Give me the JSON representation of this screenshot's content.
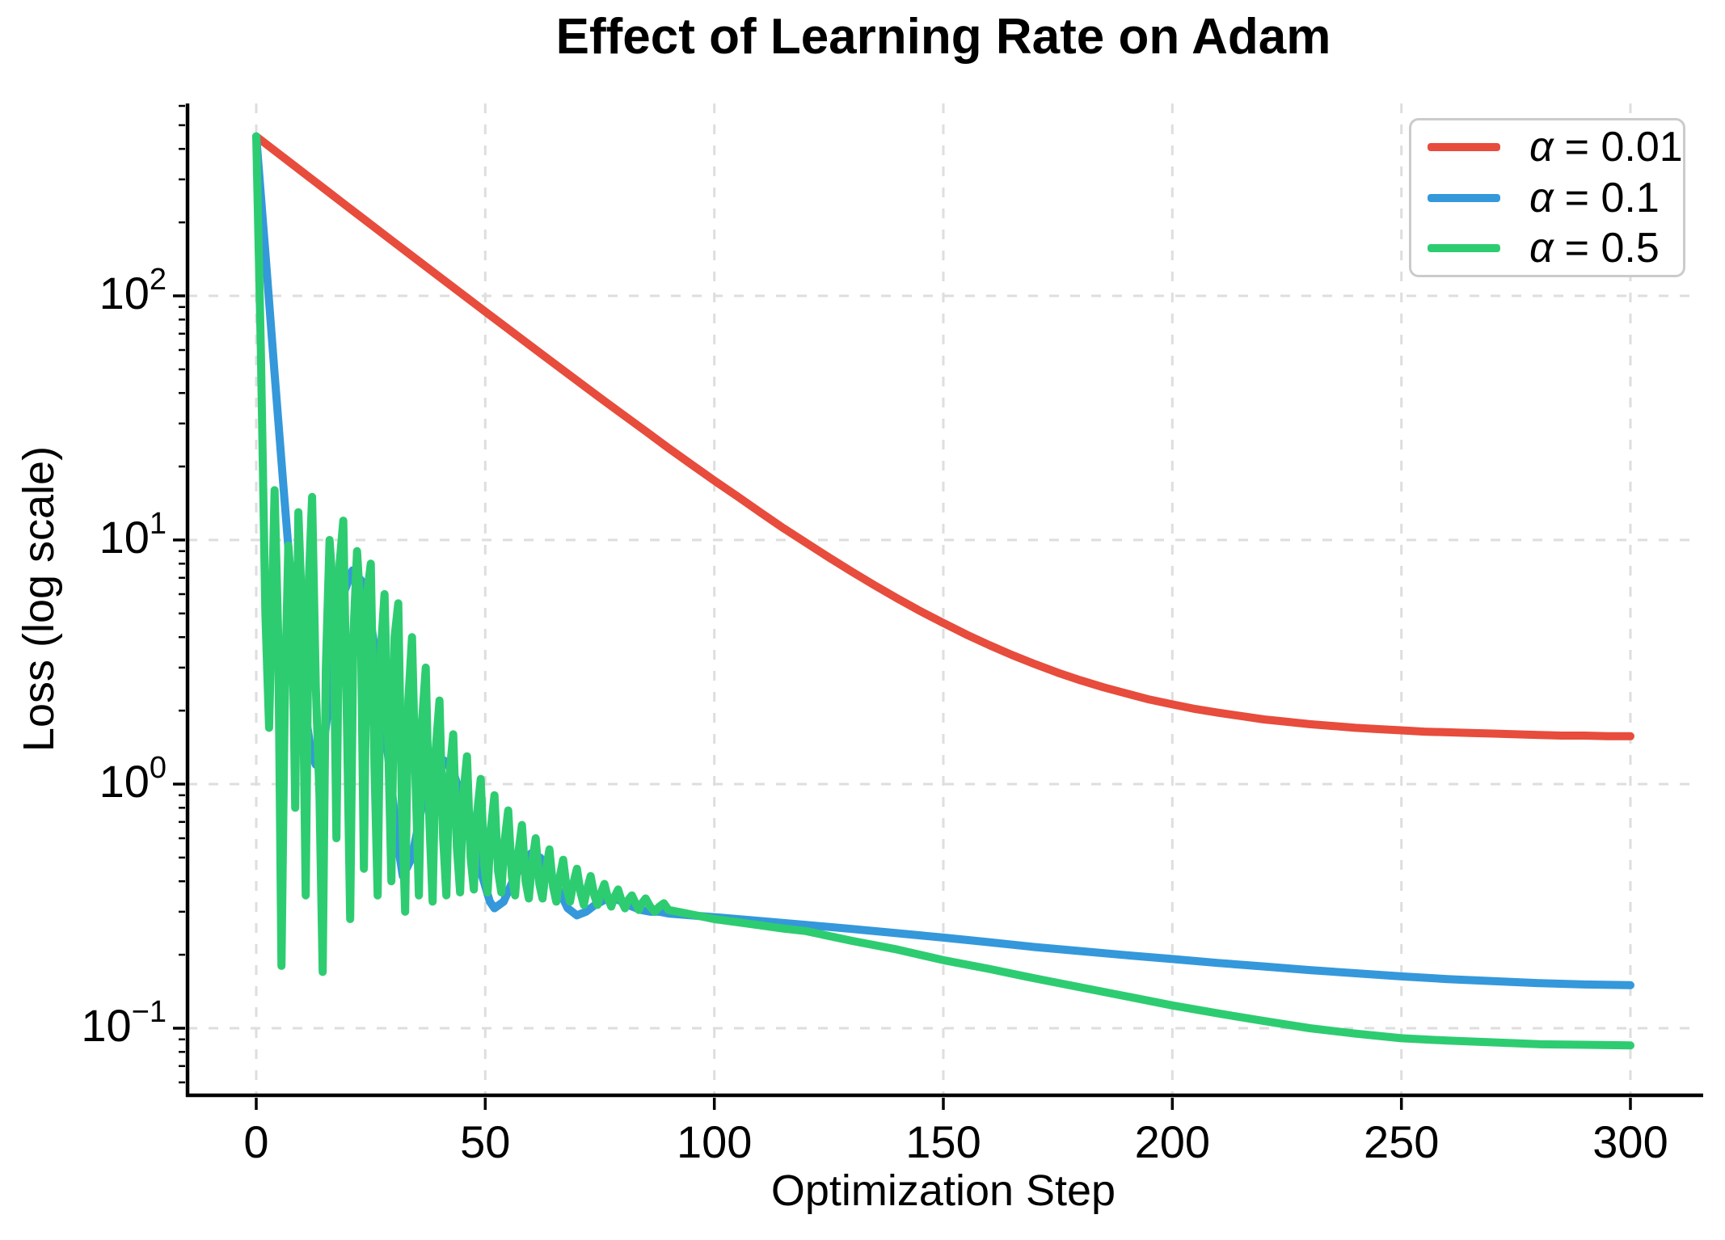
{
  "title": "Effect of Learning Rate on Adam",
  "axes": {
    "xlabel": "Optimization Step",
    "ylabel": "Loss (log scale)"
  },
  "legend": {
    "position": "upper right",
    "items": [
      {
        "symbol": "α",
        "rest": "= 0.01",
        "label": "α = 0.01",
        "color": "#e74c3c"
      },
      {
        "symbol": "α",
        "rest": "= 0.1",
        "label": "α = 0.1",
        "color": "#3498db"
      },
      {
        "symbol": "α",
        "rest": "= 0.5",
        "label": "α = 0.5",
        "color": "#2ecc71"
      }
    ]
  },
  "chart_data": {
    "type": "line",
    "title": "Effect of Learning Rate on Adam",
    "xlabel": "Optimization Step",
    "ylabel": "Loss (log scale)",
    "y_scale": "log",
    "x_range": [
      -15,
      315
    ],
    "y_range": [
      0.052,
      614
    ],
    "x_ticks": [
      0,
      50,
      100,
      150,
      200,
      250,
      300
    ],
    "y_tick_exponents": [
      -1,
      0,
      1,
      2
    ],
    "grid": "dashed-both-axes",
    "legend_position": "upper right",
    "series": [
      {
        "name": "α = 0.01",
        "color": "#e74c3c",
        "x": [
          0,
          5,
          10,
          15,
          20,
          25,
          30,
          35,
          40,
          45,
          50,
          55,
          60,
          65,
          70,
          75,
          80,
          85,
          90,
          95,
          100,
          105,
          110,
          115,
          120,
          125,
          130,
          135,
          140,
          145,
          150,
          155,
          160,
          165,
          170,
          175,
          180,
          185,
          190,
          195,
          200,
          205,
          210,
          215,
          220,
          225,
          230,
          235,
          240,
          245,
          250,
          255,
          260,
          265,
          270,
          275,
          280,
          285,
          290,
          295,
          300
        ],
        "y": [
          449.6,
          380.8,
          322.5,
          273.3,
          231.5,
          196.2,
          166.3,
          141,
          119.6,
          101.5,
          86.2,
          73.2,
          62.2,
          52.9,
          45,
          38.3,
          32.7,
          27.9,
          23.8,
          20.4,
          17.5,
          15.1,
          13,
          11.2,
          9.75,
          8.49,
          7.42,
          6.52,
          5.76,
          5.11,
          4.57,
          4.1,
          3.71,
          3.38,
          3.1,
          2.86,
          2.66,
          2.49,
          2.35,
          2.22,
          2.12,
          2.03,
          1.96,
          1.9,
          1.84,
          1.8,
          1.76,
          1.73,
          1.7,
          1.68,
          1.66,
          1.64,
          1.63,
          1.62,
          1.61,
          1.6,
          1.59,
          1.58,
          1.58,
          1.57,
          1.57
        ]
      },
      {
        "name": "α = 0.1",
        "color": "#3498db",
        "x": [
          0,
          2,
          4,
          6,
          8,
          10,
          12,
          13,
          15,
          17,
          19,
          21,
          23,
          25,
          27,
          29,
          31,
          32,
          34,
          36,
          38,
          40,
          41,
          43,
          45,
          47,
          49,
          51,
          52,
          54,
          56,
          58,
          60,
          62,
          64,
          66,
          68,
          70,
          72,
          74,
          76,
          78,
          80,
          82,
          84,
          86,
          88,
          90,
          95,
          100,
          110,
          120,
          130,
          140,
          150,
          160,
          170,
          180,
          190,
          200,
          210,
          220,
          230,
          240,
          250,
          260,
          270,
          280,
          290,
          300
        ],
        "y": [
          450,
          150,
          48,
          16,
          5.5,
          2.4,
          1.35,
          1.2,
          1.6,
          3.2,
          6,
          7.5,
          6.8,
          4.6,
          2.6,
          1.2,
          0.55,
          0.42,
          0.5,
          0.78,
          1.05,
          1.22,
          1.25,
          1.12,
          0.86,
          0.62,
          0.44,
          0.33,
          0.31,
          0.33,
          0.4,
          0.47,
          0.52,
          0.5,
          0.44,
          0.37,
          0.31,
          0.29,
          0.3,
          0.32,
          0.335,
          0.34,
          0.33,
          0.315,
          0.305,
          0.3,
          0.3,
          0.295,
          0.29,
          0.285,
          0.275,
          0.265,
          0.255,
          0.245,
          0.235,
          0.225,
          0.215,
          0.207,
          0.199,
          0.192,
          0.185,
          0.179,
          0.173,
          0.168,
          0.163,
          0.159,
          0.156,
          0.153,
          0.151,
          0.15
        ]
      },
      {
        "name": "α = 0.5",
        "color": "#2ecc71",
        "x": [
          0,
          1,
          2,
          2.8,
          3.5,
          4,
          4.8,
          5.5,
          6.2,
          7,
          7.8,
          8.5,
          9.2,
          10,
          10.8,
          11.5,
          12.2,
          13,
          13.8,
          14.5,
          15.2,
          16,
          16.8,
          17.5,
          18.2,
          19,
          19.8,
          20.5,
          21.2,
          22,
          22.8,
          23.5,
          24.2,
          25,
          25.8,
          26.5,
          27.2,
          28,
          28.8,
          29.5,
          30.2,
          31,
          31.8,
          32.5,
          33.2,
          34,
          34.8,
          35.5,
          36.2,
          37,
          37.8,
          38.5,
          39.2,
          40,
          40.8,
          41.5,
          42.2,
          43,
          43.8,
          44.5,
          45.2,
          46,
          46.8,
          47.5,
          48.2,
          49,
          49.8,
          50.5,
          51.2,
          52,
          52.8,
          53.5,
          54.2,
          55,
          55.8,
          56.5,
          57.2,
          58,
          58.8,
          59.5,
          60.2,
          61,
          61.8,
          62.5,
          63.2,
          64,
          64.8,
          65.5,
          66.2,
          67,
          67.8,
          68.5,
          69.2,
          70,
          70.8,
          71.5,
          72.2,
          73,
          73.8,
          74.5,
          75.2,
          76,
          76.8,
          77.5,
          78.2,
          79,
          79.8,
          80.5,
          81.2,
          82,
          82.8,
          83.5,
          84.2,
          85,
          86,
          87,
          88,
          89,
          90,
          92,
          94,
          96,
          98,
          100,
          105,
          110,
          115,
          120,
          130,
          140,
          150,
          160,
          170,
          180,
          190,
          200,
          210,
          220,
          230,
          240,
          250,
          260,
          270,
          280,
          290,
          300
        ],
        "y": [
          450,
          60,
          5,
          1.7,
          6,
          16,
          4,
          0.18,
          2,
          9.5,
          6,
          0.8,
          13,
          5,
          0.35,
          7,
          15,
          2.5,
          0.9,
          0.17,
          3,
          10,
          6,
          0.6,
          8,
          12,
          1.8,
          0.28,
          4,
          9,
          5,
          0.45,
          6,
          8,
          1.2,
          0.35,
          3.5,
          6,
          1.5,
          0.4,
          4,
          5.5,
          0.8,
          0.3,
          2.2,
          4,
          1,
          0.35,
          1.8,
          3,
          0.7,
          0.33,
          1.4,
          2.2,
          0.6,
          0.35,
          1.1,
          1.6,
          0.55,
          0.36,
          0.9,
          1.3,
          0.5,
          0.37,
          0.75,
          1.05,
          0.46,
          0.36,
          0.65,
          0.9,
          0.44,
          0.36,
          0.58,
          0.78,
          0.42,
          0.35,
          0.52,
          0.68,
          0.4,
          0.34,
          0.47,
          0.6,
          0.39,
          0.34,
          0.44,
          0.54,
          0.38,
          0.33,
          0.41,
          0.49,
          0.37,
          0.33,
          0.39,
          0.45,
          0.36,
          0.32,
          0.37,
          0.42,
          0.35,
          0.32,
          0.355,
          0.39,
          0.34,
          0.315,
          0.345,
          0.37,
          0.33,
          0.31,
          0.335,
          0.35,
          0.325,
          0.305,
          0.325,
          0.34,
          0.315,
          0.3,
          0.315,
          0.325,
          0.305,
          0.3,
          0.295,
          0.29,
          0.285,
          0.28,
          0.272,
          0.264,
          0.256,
          0.25,
          0.228,
          0.21,
          0.19,
          0.175,
          0.16,
          0.147,
          0.135,
          0.124,
          0.115,
          0.107,
          0.1,
          0.095,
          0.091,
          0.089,
          0.0875,
          0.086,
          0.0855,
          0.085
        ]
      }
    ]
  }
}
